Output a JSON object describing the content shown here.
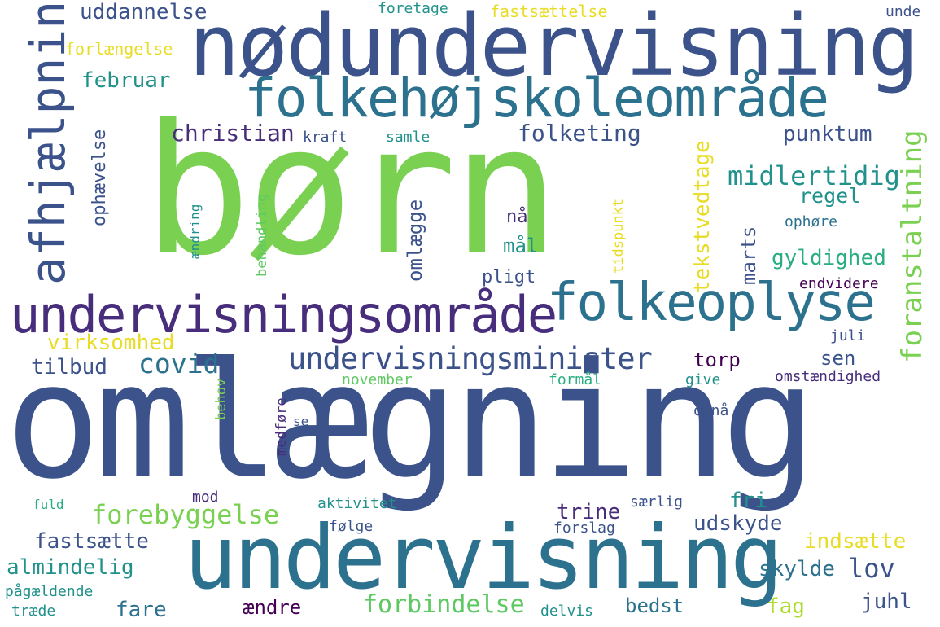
{
  "words": {
    "born": "børn",
    "omlaegning": "omlægning",
    "nodundervisning": "nødundervisning",
    "undervisning": "undervisning",
    "folkehojskoleomrade": "folkehøjskoleområde",
    "undervisningsomrade": "undervisningsområde",
    "folkeoplyse": "folkeoplyse",
    "afhjaelpning": "afhjælpning",
    "undervisningsminister": "undervisningsminister",
    "foranstaltning": "foranstaltning",
    "midlertidig": "midlertidig",
    "forebyggelse": "forebyggelse",
    "forbindelse": "forbindelse",
    "covid": "covid",
    "christian": "christian",
    "folketing": "folketing",
    "tekstvedtage": "tekstvedtage",
    "uddannelse": "uddannelse",
    "februar": "februar",
    "punktum": "punktum",
    "regel": "regel",
    "gyldighed": "gyldighed",
    "marts": "marts",
    "virksomhed": "virksomhed",
    "tilbud": "tilbud",
    "omlaegge": "omlægge",
    "ophaevelse": "ophævelse",
    "fastsaette": "fastsætte",
    "almindelig": "almindelig",
    "fare": "fare",
    "aendre": "ændre",
    "trine": "trine",
    "udskyde": "udskyde",
    "fri": "fri",
    "lov": "lov",
    "skylde": "skylde",
    "indsaette": "indsætte",
    "bedst": "bedst",
    "fag": "fag",
    "juhl": "juhl",
    "torp": "torp",
    "sen": "sen",
    "na": "nå",
    "mal": "mål",
    "pligt": "pligt",
    "fastsaettelse": "fastsættelse",
    "forlaengelse": "forlængelse",
    "foretage": "foretage",
    "unde": "unde",
    "kraft": "kraft",
    "samle": "samle",
    "aendring": "ændring",
    "behandling": "behandling",
    "tidspunkt": "tidspunkt",
    "ophore": "ophøre",
    "endvidere": "endvidere",
    "juli": "juli",
    "omstaendighed": "omstændighed",
    "give": "give",
    "formal": "formål",
    "november": "november",
    "behov": "behov",
    "medfore": "medføre",
    "se": "se",
    "opna": "opnå",
    "mod": "mod",
    "aktivitet": "aktivitet",
    "saerlig": "særlig",
    "fuld": "fuld",
    "folge": "følge",
    "forslag": "forslag",
    "pagaeldende": "pågældende",
    "traede": "træde",
    "delvis": "delvis"
  }
}
